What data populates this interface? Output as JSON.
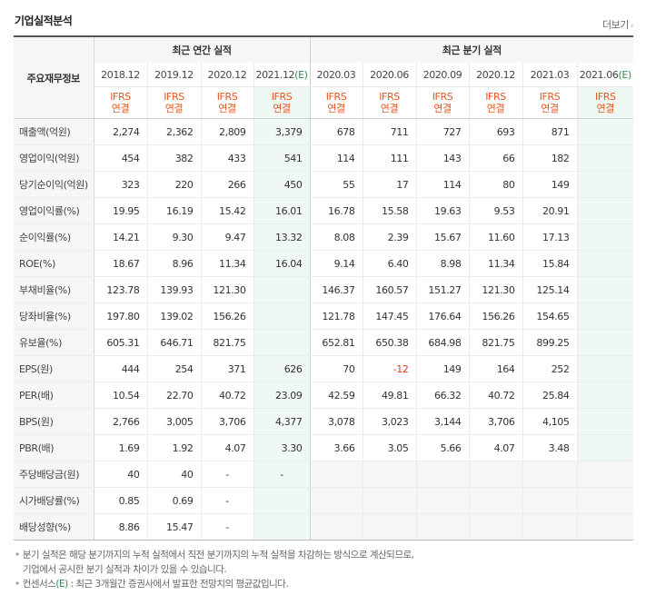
{
  "title": "기업실적분석",
  "more_label": "더보기",
  "table": {
    "stub_header": "주요재무정보",
    "annual_header": "최근 연간 실적",
    "quarter_header": "최근 분기 실적",
    "periods": [
      {
        "label": "2018.12",
        "est": ""
      },
      {
        "label": "2019.12",
        "est": ""
      },
      {
        "label": "2020.12",
        "est": ""
      },
      {
        "label": "2021.12",
        "est": "(E)"
      },
      {
        "label": "2020.03",
        "est": ""
      },
      {
        "label": "2020.06",
        "est": ""
      },
      {
        "label": "2020.09",
        "est": ""
      },
      {
        "label": "2020.12",
        "est": ""
      },
      {
        "label": "2021.03",
        "est": ""
      },
      {
        "label": "2021.06",
        "est": "(E)"
      }
    ],
    "basis_line1": "IFRS",
    "basis_line2": "연결",
    "rows": [
      {
        "label": "매출액(억원)",
        "values": [
          "2,274",
          "2,362",
          "2,809",
          "3,379",
          "678",
          "711",
          "727",
          "693",
          "871",
          ""
        ]
      },
      {
        "label": "영업이익(억원)",
        "values": [
          "454",
          "382",
          "433",
          "541",
          "114",
          "111",
          "143",
          "66",
          "182",
          ""
        ]
      },
      {
        "label": "당기순이익(억원)",
        "values": [
          "323",
          "220",
          "266",
          "450",
          "55",
          "17",
          "114",
          "80",
          "149",
          ""
        ]
      },
      {
        "label": "영업이익률(%)",
        "values": [
          "19.95",
          "16.19",
          "15.42",
          "16.01",
          "16.78",
          "15.58",
          "19.63",
          "9.53",
          "20.91",
          ""
        ]
      },
      {
        "label": "순이익률(%)",
        "values": [
          "14.21",
          "9.30",
          "9.47",
          "13.32",
          "8.08",
          "2.39",
          "15.67",
          "11.60",
          "17.13",
          ""
        ]
      },
      {
        "label": "ROE(%)",
        "values": [
          "18.67",
          "8.96",
          "11.34",
          "16.04",
          "9.14",
          "6.40",
          "8.98",
          "11.34",
          "15.84",
          ""
        ]
      },
      {
        "label": "부채비율(%)",
        "values": [
          "123.78",
          "139.93",
          "121.30",
          "",
          "146.37",
          "160.57",
          "151.27",
          "121.30",
          "125.14",
          ""
        ]
      },
      {
        "label": "당좌비율(%)",
        "values": [
          "197.80",
          "139.02",
          "156.26",
          "",
          "121.78",
          "147.45",
          "176.64",
          "156.26",
          "154.65",
          ""
        ]
      },
      {
        "label": "유보율(%)",
        "values": [
          "605.31",
          "646.71",
          "821.75",
          "",
          "652.81",
          "650.38",
          "684.98",
          "821.75",
          "899.25",
          ""
        ]
      },
      {
        "label": "EPS(원)",
        "values": [
          "444",
          "254",
          "371",
          "626",
          "70",
          "-12",
          "149",
          "164",
          "252",
          ""
        ]
      },
      {
        "label": "PER(배)",
        "values": [
          "10.54",
          "22.70",
          "40.72",
          "23.09",
          "42.59",
          "49.81",
          "66.32",
          "40.72",
          "25.84",
          ""
        ]
      },
      {
        "label": "BPS(원)",
        "values": [
          "2,766",
          "3,005",
          "3,706",
          "4,377",
          "3,078",
          "3,023",
          "3,144",
          "3,706",
          "4,105",
          ""
        ]
      },
      {
        "label": "PBR(배)",
        "values": [
          "1.69",
          "1.92",
          "4.07",
          "3.30",
          "3.66",
          "3.05",
          "5.66",
          "4.07",
          "3.48",
          ""
        ]
      },
      {
        "label": "주당배당금(원)",
        "values": [
          "40",
          "40",
          "-",
          "-",
          "",
          "",
          "",
          "",
          "",
          ""
        ]
      },
      {
        "label": "시가배당률(%)",
        "values": [
          "0.85",
          "0.69",
          "-",
          "",
          "",
          "",
          "",
          "",
          "",
          ""
        ]
      },
      {
        "label": "배당성향(%)",
        "values": [
          "8.86",
          "15.47",
          "-",
          "",
          "",
          "",
          "",
          "",
          "",
          ""
        ]
      }
    ]
  },
  "notes": {
    "line1": "분기 실적은 해당 분기까지의 누적 실적에서 직전 분기까지의 누적 실적을 차감하는 방식으로 계산되므로,",
    "line2": "기업에서 공시한 분기 실적과 차이가 있을 수 있습니다.",
    "line3_prefix": "컨센서스",
    "line3_mark": "(E)",
    "line3_suffix": ": 최근 3개월간 증권사에서 발표한 전망치의 평균값입니다."
  }
}
